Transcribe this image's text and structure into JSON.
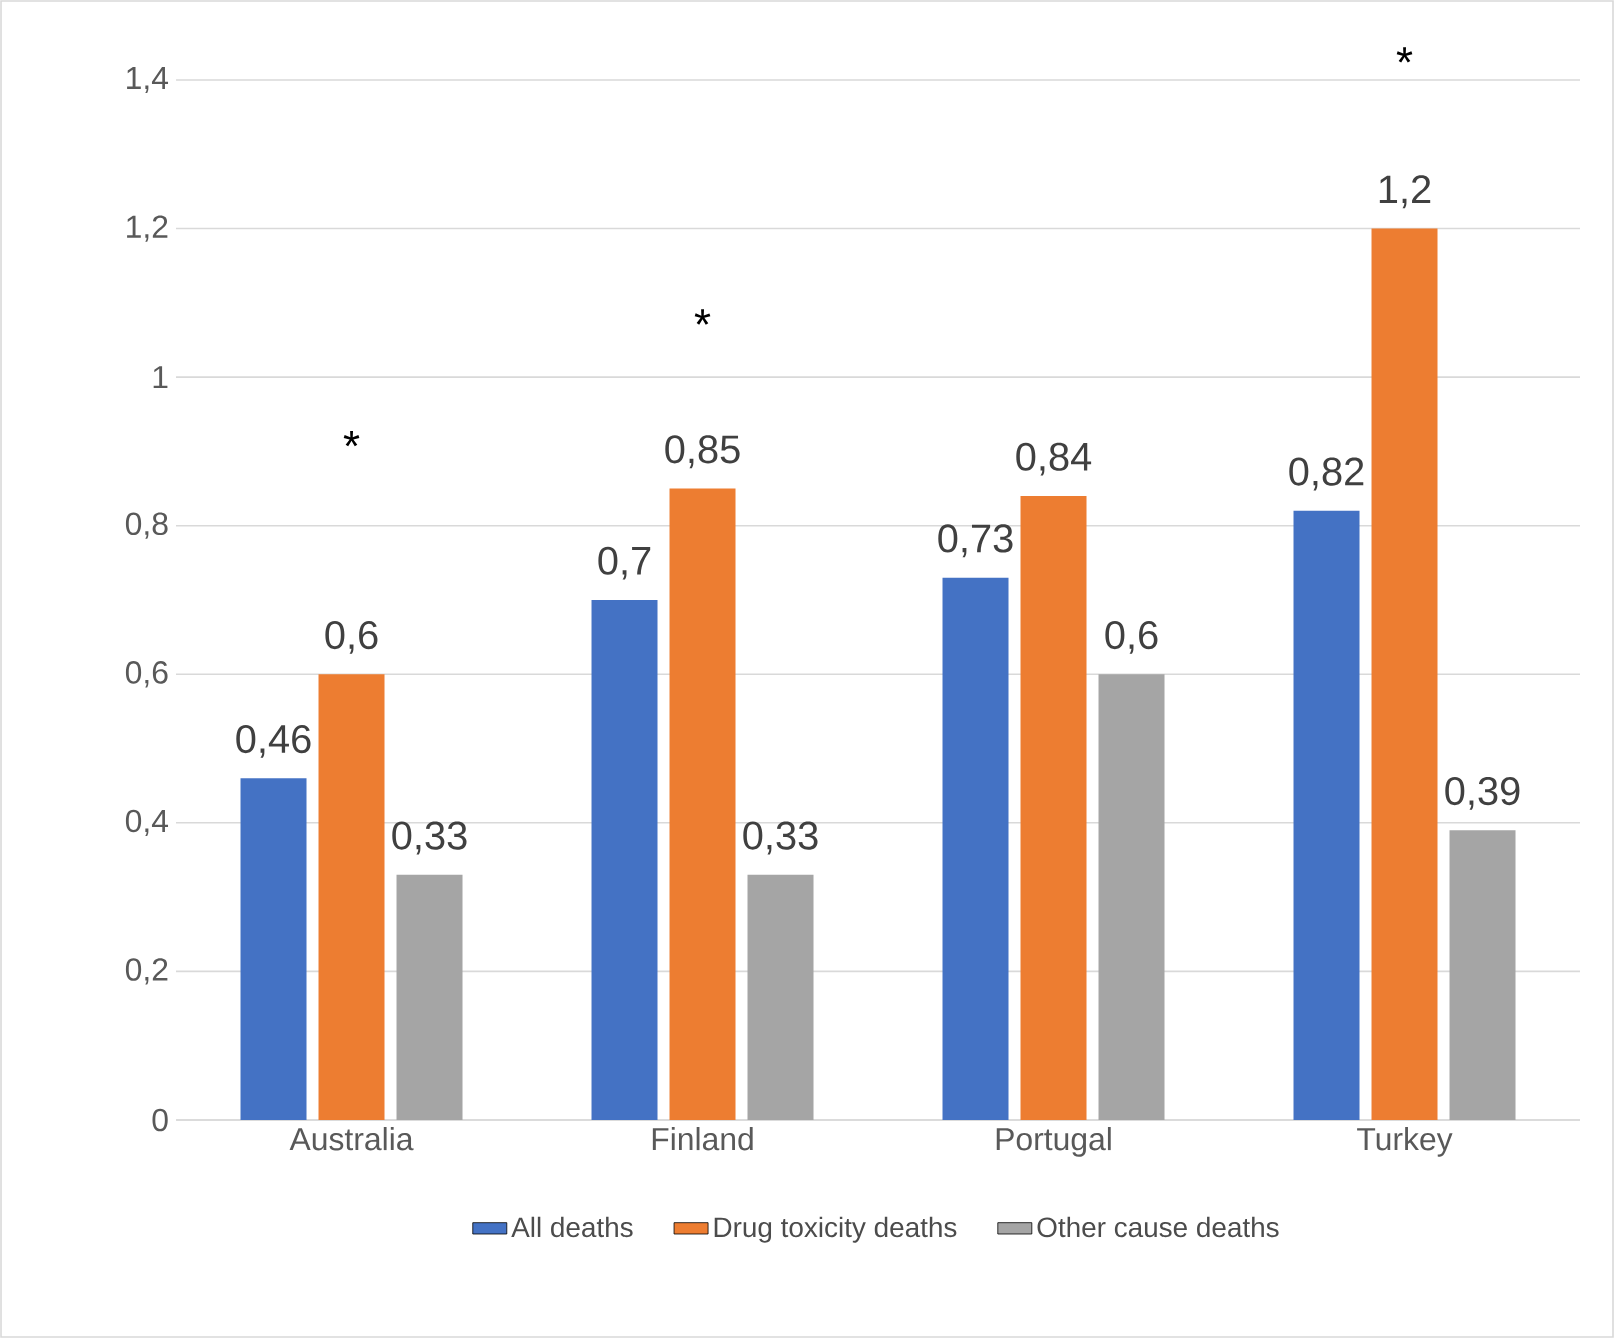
{
  "chart_data": {
    "type": "bar",
    "categories": [
      "Australia",
      "Finland",
      "Portugal",
      "Turkey"
    ],
    "series": [
      {
        "name": "All deaths",
        "color": "#4472c4",
        "values": [
          0.46,
          0.7,
          0.73,
          0.82
        ],
        "value_labels": [
          "0,46",
          "0,7",
          "0,73",
          "0,82"
        ]
      },
      {
        "name": "Drug toxicity deaths",
        "color": "#ed7d31",
        "values": [
          0.6,
          0.85,
          0.84,
          1.2
        ],
        "value_labels": [
          "0,6",
          "0,85",
          "0,84",
          "1,2"
        ]
      },
      {
        "name": "Other cause deaths",
        "color": "#a5a5a5",
        "values": [
          0.33,
          0.33,
          0.6,
          0.39
        ],
        "value_labels": [
          "0,33",
          "0,33",
          "0,6",
          "0,39"
        ]
      }
    ],
    "ylim": [
      0,
      1.4
    ],
    "yticks": [
      0,
      {
        "value": 0.2,
        "label": "0,2"
      },
      {
        "value": 0.4,
        "label": "0,4"
      },
      {
        "value": 0.6,
        "label": "0,6"
      },
      {
        "value": 0.8,
        "label": "0,8"
      },
      1,
      {
        "value": 1.2,
        "label": "1,2"
      },
      {
        "value": 1.4,
        "label": "1,4"
      }
    ],
    "annotations": [
      "*",
      "*",
      "*"
    ],
    "grid": "y",
    "legend": "bottom"
  }
}
